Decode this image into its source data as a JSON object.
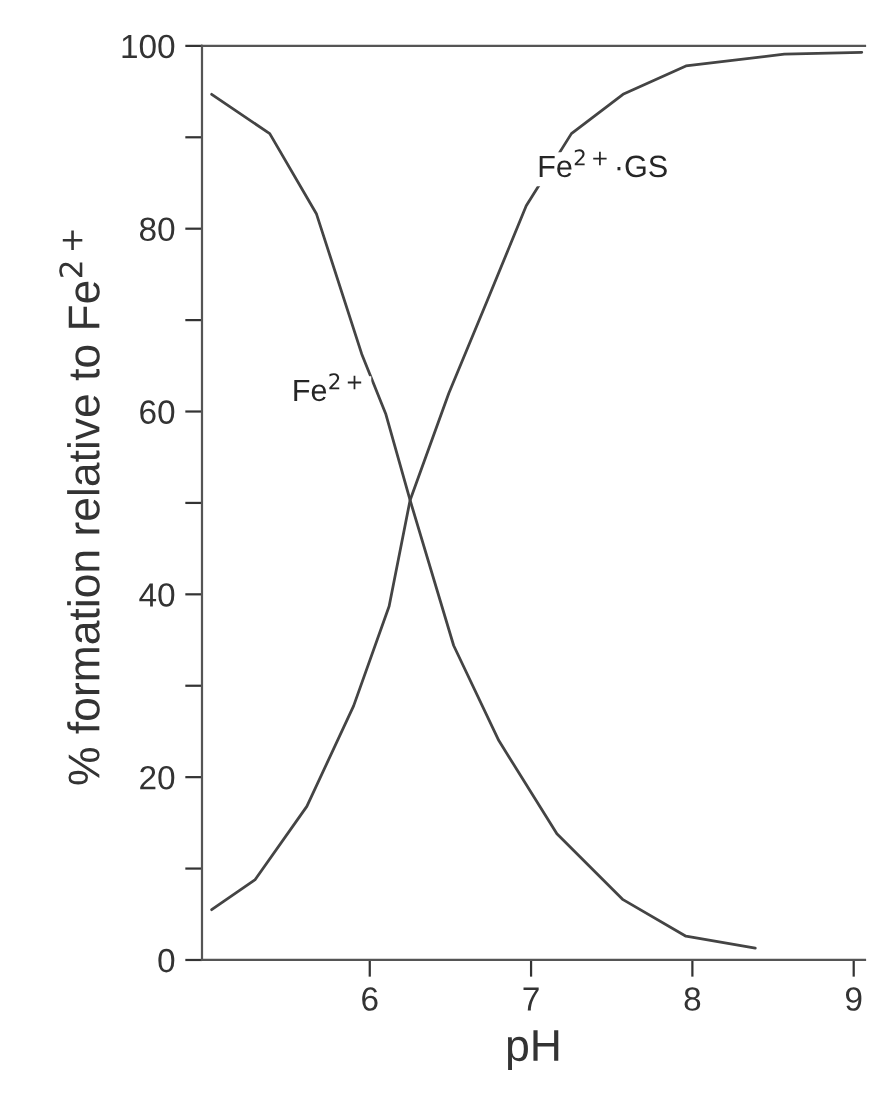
{
  "chart_data": {
    "type": "line",
    "xlabel": "pH",
    "ylabel": "% formation relative to Fe$^{2+}$",
    "xlim": [
      4.96,
      9.07
    ],
    "xticks": [
      6,
      7,
      8,
      9
    ],
    "ylim": [
      0,
      100
    ],
    "yticks": [
      0,
      {
        "value": 10,
        "label": null
      },
      20,
      {
        "value": 30,
        "label": null
      },
      40,
      {
        "value": 50,
        "label": null
      },
      60,
      {
        "value": 70,
        "label": null
      },
      80,
      {
        "value": 90,
        "label": null
      },
      100
    ],
    "series": [
      {
        "color": "#444444",
        "x": [
          5.02,
          5.38,
          5.67,
          5.95,
          6.1,
          6.25,
          6.52,
          6.8,
          7.16,
          7.57,
          7.96,
          8.39
        ],
        "values": [
          94.7,
          90.4,
          81.6,
          66.3,
          59.7,
          50.3,
          34.4,
          24.0,
          13.8,
          6.6,
          2.6,
          1.3
        ]
      },
      {
        "color": "#444444",
        "x": [
          5.02,
          5.29,
          5.61,
          5.9,
          6.12,
          6.25,
          6.49,
          6.73,
          6.97,
          7.25,
          7.57,
          7.96,
          8.57,
          9.05
        ],
        "values": [
          5.5,
          8.8,
          16.8,
          27.8,
          38.7,
          50.3,
          62.0,
          72.2,
          82.5,
          90.4,
          94.7,
          97.8,
          99.1,
          99.3
        ]
      }
    ],
    "annotations": [
      {
        "text": "Fe$^{2+}$",
        "x": 6.03,
        "y": 62
      },
      {
        "text": "Fe$^{2+}$·GS",
        "x": 7.1,
        "y": 86.5
      }
    ],
    "grid": false,
    "line_style": "solid",
    "marker": "none"
  }
}
